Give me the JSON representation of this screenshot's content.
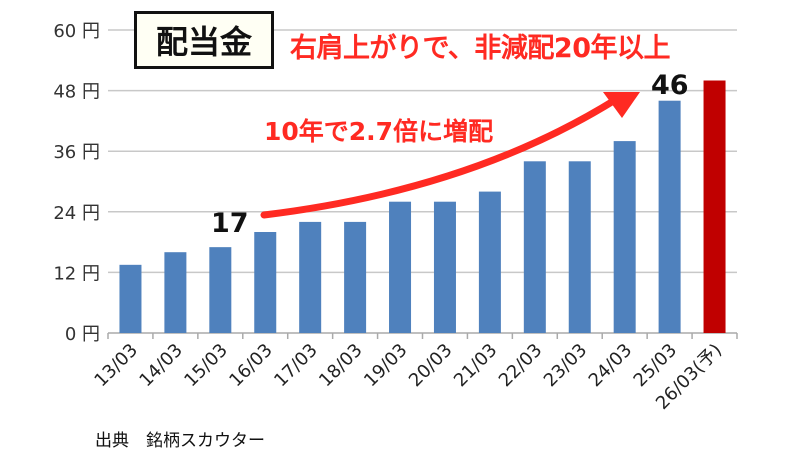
{
  "chart_data": {
    "type": "bar",
    "title": "配当金",
    "subtitle": "右肩上がりで、非減配20年以上",
    "annotation": "10年で2.7倍に増配",
    "categories": [
      "13/03",
      "14/03",
      "15/03",
      "16/03",
      "17/03",
      "18/03",
      "19/03",
      "20/03",
      "21/03",
      "22/03",
      "23/03",
      "24/03",
      "25/03",
      "26/03(予)"
    ],
    "values": [
      13.5,
      16,
      17,
      20,
      22,
      22,
      26,
      26,
      28,
      34,
      34,
      38,
      46,
      50
    ],
    "data_labels": {
      "start": "17",
      "end": "46"
    },
    "yticks": [
      0,
      12,
      24,
      36,
      48,
      60
    ],
    "ytick_unit": "円",
    "ylim": [
      0,
      60
    ],
    "grid": true,
    "xlabel": "",
    "ylabel": "",
    "colors": {
      "actual": "#4f81bd",
      "forecast": "#c00000",
      "arrow": "#ff2a22"
    }
  },
  "source": "出典　銘柄スカウター"
}
